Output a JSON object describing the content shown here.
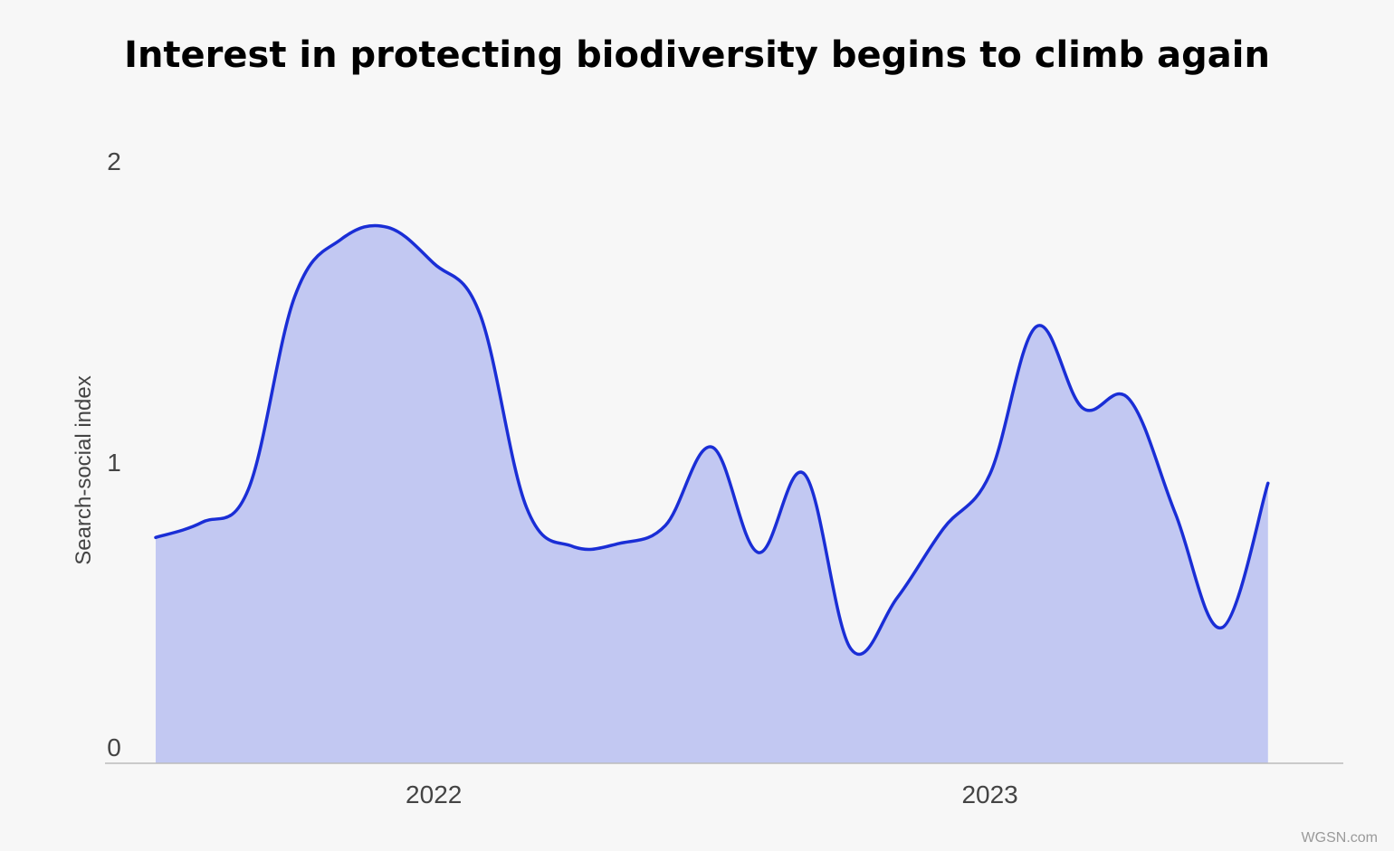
{
  "title": "Interest in protecting biodiversity begins to climb again",
  "credit": "WGSN.com",
  "colors": {
    "line": "#1a2ed6",
    "fill": "#c2c8f2",
    "axis": "#bbbbbb",
    "background": "#f7f7f7"
  },
  "chart_data": {
    "type": "area",
    "title": "Interest in protecting biodiversity begins to climb again",
    "ylabel": "Search-social index",
    "xlabel": "",
    "ylim": [
      0,
      2
    ],
    "yticks": [
      {
        "value": 0,
        "label": "0"
      },
      {
        "value": 1,
        "label": "1"
      },
      {
        "value": 2,
        "label": "2"
      }
    ],
    "xlim": [
      "2021-09",
      "2023-10"
    ],
    "xticks": [
      {
        "value": "2022-03",
        "label": "2022"
      },
      {
        "value": "2023-03",
        "label": "2023"
      }
    ],
    "grid": false,
    "legend": "none",
    "series": [
      {
        "values": [
          {
            "x": "2021-09",
            "y": 0.75
          },
          {
            "x": "2021-10",
            "y": 0.8
          },
          {
            "x": "2021-11",
            "y": 0.91
          },
          {
            "x": "2021-12",
            "y": 1.55
          },
          {
            "x": "2022-01",
            "y": 1.74
          },
          {
            "x": "2022-02",
            "y": 1.78
          },
          {
            "x": "2022-03",
            "y": 1.66
          },
          {
            "x": "2022-04",
            "y": 1.49
          },
          {
            "x": "2022-05",
            "y": 0.85
          },
          {
            "x": "2022-06",
            "y": 0.72
          },
          {
            "x": "2022-07",
            "y": 0.73
          },
          {
            "x": "2022-08",
            "y": 0.79
          },
          {
            "x": "2022-09",
            "y": 1.05
          },
          {
            "x": "2022-10",
            "y": 0.7
          },
          {
            "x": "2022-11",
            "y": 0.96
          },
          {
            "x": "2022-12",
            "y": 0.38
          },
          {
            "x": "2023-01",
            "y": 0.55
          },
          {
            "x": "2023-02",
            "y": 0.78
          },
          {
            "x": "2023-03",
            "y": 0.96
          },
          {
            "x": "2023-04",
            "y": 1.45
          },
          {
            "x": "2023-05",
            "y": 1.18
          },
          {
            "x": "2023-06",
            "y": 1.21
          },
          {
            "x": "2023-07",
            "y": 0.83
          },
          {
            "x": "2023-08",
            "y": 0.45
          },
          {
            "x": "2023-09",
            "y": 0.93
          }
        ]
      }
    ]
  }
}
